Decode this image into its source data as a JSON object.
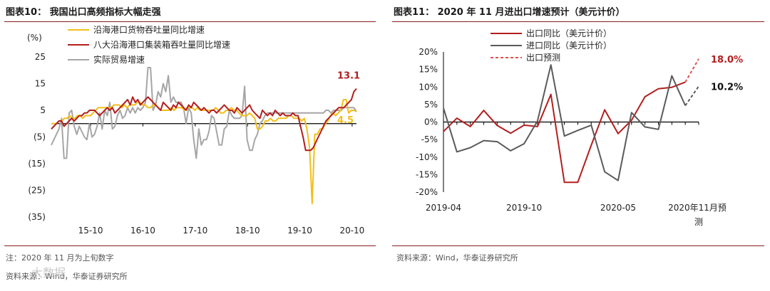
{
  "left": {
    "title": "图表10：  我国出口高频指标大幅走强",
    "note": "注：2020 年 11 月为上旬数字",
    "source": "资料来源：Wind，华泰证券研究所",
    "watermark": "大数据",
    "chart_data": {
      "type": "line",
      "unit_label": "(%)",
      "ylim": [
        -35,
        25
      ],
      "yticks": [
        25,
        15,
        5,
        -5,
        -15,
        -25,
        -35
      ],
      "ytick_labels": [
        "25",
        "15",
        "5",
        "(5)",
        "(15)",
        "(25)",
        "(35)"
      ],
      "xticks": [
        "15-10",
        "16-10",
        "17-10",
        "18-10",
        "19-10",
        "20-10"
      ],
      "x_start": "2015-01",
      "x_end": "2020-11",
      "series": [
        {
          "name": "沿海港口货物吞吐量同比增速",
          "color": "#f2bf1a",
          "values": [
            0,
            0,
            0,
            1,
            1,
            2,
            2,
            3,
            2,
            2,
            3,
            3,
            2,
            3,
            3,
            3,
            4,
            5,
            6,
            6,
            6,
            6,
            6,
            6,
            7,
            7,
            7,
            6,
            7,
            6,
            7,
            7,
            7,
            8,
            8,
            7,
            7,
            6,
            6,
            7,
            7,
            6,
            5,
            5,
            5,
            5,
            6,
            5,
            6,
            6,
            6,
            5,
            6,
            6,
            6,
            5,
            6,
            5,
            5,
            5,
            5,
            5,
            5,
            6,
            5,
            4,
            4,
            5,
            5,
            6,
            5,
            5,
            4,
            3,
            3,
            3,
            4,
            3,
            2,
            -2,
            -2,
            -1,
            1,
            1,
            2,
            1,
            1,
            2,
            2,
            2,
            2,
            3,
            3,
            2,
            2,
            2,
            1,
            2,
            -2,
            -9,
            -30,
            -4,
            -4,
            -2,
            -2,
            0,
            1,
            3,
            4,
            3,
            4,
            5,
            9,
            9,
            4,
            5,
            5,
            4.5
          ]
        },
        {
          "name": "八大沿海港口集装箱吞吐量同比增速",
          "color": "#b41e1e",
          "values": [
            -2,
            -1,
            0,
            1,
            1,
            -1,
            0,
            1,
            2,
            1,
            2,
            3,
            3,
            4,
            4,
            5,
            5,
            5,
            4,
            3,
            4,
            5,
            6,
            5,
            6,
            4,
            5,
            6,
            7,
            8,
            9,
            7,
            10,
            8,
            9,
            7,
            8,
            9,
            10,
            9,
            8,
            7,
            6,
            5,
            8,
            7,
            6,
            5,
            7,
            6,
            8,
            7,
            6,
            5,
            7,
            6,
            8,
            7,
            6,
            5,
            6,
            5,
            4,
            5,
            5,
            4,
            5,
            6,
            7,
            6,
            5,
            5,
            4,
            6,
            5,
            4,
            5,
            6,
            7,
            5,
            4,
            3,
            2,
            5,
            4,
            3,
            4,
            3,
            5,
            4,
            3,
            4,
            3,
            3,
            3,
            4,
            3,
            3,
            -1,
            -5,
            -10,
            -10,
            -10,
            -9,
            -7,
            -5,
            -3,
            -1,
            1,
            2,
            3,
            4,
            5,
            6,
            6,
            6,
            7,
            8,
            9,
            12,
            13.1
          ]
        },
        {
          "name": "实际贸易增速",
          "color": "#a6a6a6",
          "values": [
            -8,
            -6,
            -4,
            -2,
            2,
            -13,
            -13,
            4,
            5,
            -1,
            -4,
            -1,
            -3,
            -5,
            -6,
            0,
            -5,
            -4,
            -1,
            4,
            -2,
            5,
            3,
            8,
            -2,
            -1,
            3,
            5,
            2,
            3,
            6,
            4,
            6,
            4,
            6,
            5,
            6,
            8,
            21,
            21,
            5,
            7,
            12,
            10,
            15,
            12,
            18,
            8,
            10,
            8,
            8,
            8,
            6,
            0,
            6,
            4,
            -6,
            -13,
            -2,
            -8,
            -6,
            -6,
            -3,
            3,
            2,
            -3,
            -8,
            -8,
            -2,
            -1,
            5,
            3,
            2,
            2,
            2,
            3,
            14,
            -6,
            -10,
            -10,
            -6,
            -4,
            0,
            1,
            3,
            4,
            4,
            4,
            4,
            4,
            4,
            4,
            4,
            4,
            4,
            4,
            4,
            4,
            4,
            4,
            4,
            4,
            4,
            4,
            4,
            4,
            4,
            4,
            5,
            5,
            4,
            5,
            5,
            5,
            5,
            6,
            6,
            6,
            6,
            6,
            4.5
          ]
        }
      ],
      "annotations": [
        {
          "text": "13.1",
          "value": 13.1,
          "color": "#b41e1e"
        },
        {
          "text": "4.5",
          "value": 4.5,
          "color": "#f2bf1a"
        }
      ]
    }
  },
  "right": {
    "title": "图表11：  2020 年 11 月进出口增速预计（美元计价）",
    "source": "资料来源：Wind，华泰证券研究所",
    "chart_data": {
      "type": "line",
      "ylim": [
        -20,
        20
      ],
      "yticks": [
        20,
        15,
        10,
        5,
        0,
        -5,
        -10,
        -15,
        -20
      ],
      "ytick_labels": [
        "20%",
        "15%",
        "10%",
        "5%",
        "0%",
        "-5%",
        "-10%",
        "-15%",
        "-20%"
      ],
      "xticks": [
        {
          "label": "2019-04",
          "index": 0
        },
        {
          "label": "2019-10",
          "index": 6
        },
        {
          "label": "2020-05",
          "index": 13
        },
        {
          "label": "2020年11月预测",
          "index": 19
        }
      ],
      "x": [
        "2019-04",
        "2019-05",
        "2019-06",
        "2019-07",
        "2019-08",
        "2019-09",
        "2019-10",
        "2019-11",
        "2019-12",
        "2020-01",
        "2020-02",
        "2020-03",
        "2020-04",
        "2020-05",
        "2020-06",
        "2020-07",
        "2020-08",
        "2020-09",
        "2020-10",
        "2020-11"
      ],
      "series": [
        {
          "name": "出口同比（美元计价）",
          "color": "#b41e1e",
          "style": "solid",
          "values": [
            -2.7,
            1.1,
            -1.3,
            3.3,
            -1.0,
            -3.2,
            -0.9,
            -1.3,
            7.9,
            -17.2,
            -17.2,
            -6.6,
            3.5,
            -3.3,
            0.5,
            7.2,
            9.5,
            9.9,
            11.4,
            null
          ]
        },
        {
          "name": "进口同比（美元计价）",
          "color": "#5a5a5a",
          "style": "solid",
          "values": [
            4.0,
            -8.5,
            -7.3,
            -5.3,
            -5.6,
            -8.2,
            -6.2,
            0.3,
            16.3,
            -4.0,
            -2.4,
            -0.9,
            -14.2,
            -16.7,
            2.7,
            -1.4,
            -2.1,
            13.2,
            4.7,
            null
          ]
        },
        {
          "name": "出口预测",
          "color": "#d9534f",
          "style": "dashed",
          "values": [
            null,
            null,
            null,
            null,
            null,
            null,
            null,
            null,
            null,
            null,
            null,
            null,
            null,
            null,
            null,
            null,
            null,
            null,
            11.4,
            18.0
          ]
        },
        {
          "name": "进口预测",
          "color": "#5a5a5a",
          "style": "dashed",
          "legend": false,
          "values": [
            null,
            null,
            null,
            null,
            null,
            null,
            null,
            null,
            null,
            null,
            null,
            null,
            null,
            null,
            null,
            null,
            null,
            null,
            4.7,
            10.2
          ]
        }
      ],
      "legend_names": [
        "出口同比（美元计价）",
        "进口同比（美元计价）",
        "出口预测"
      ],
      "annotations": [
        {
          "text": "18.0%",
          "value": 18.0,
          "color": "#b41e1e"
        },
        {
          "text": "10.2%",
          "value": 10.2,
          "color": "#111111"
        }
      ]
    }
  }
}
